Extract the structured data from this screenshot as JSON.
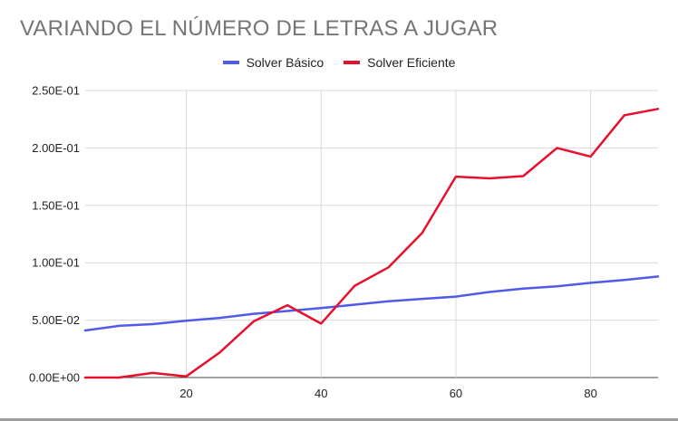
{
  "chart_data": {
    "type": "line",
    "title": "VARIANDO EL NÚMERO DE LETRAS A JUGAR",
    "xlabel": "",
    "ylabel": "",
    "xlim": [
      5,
      90
    ],
    "ylim": [
      0,
      0.25
    ],
    "x_ticks": [
      20,
      40,
      60,
      80
    ],
    "x_tick_labels": [
      "20",
      "40",
      "60",
      "80"
    ],
    "y_ticks": [
      0,
      0.05,
      0.1,
      0.15,
      0.2,
      0.25
    ],
    "y_tick_labels": [
      "0.00E+00",
      "5.00E-02",
      "1.00E-01",
      "1.50E-01",
      "2.00E-01",
      "2.50E-01"
    ],
    "grid": true,
    "legend_position": "top-center",
    "x": [
      5,
      10,
      15,
      20,
      25,
      30,
      35,
      40,
      45,
      50,
      55,
      60,
      65,
      70,
      75,
      80,
      85,
      90
    ],
    "series": [
      {
        "name": "Solver Básico",
        "color": "#4f5bea",
        "values": [
          0.041,
          0.045,
          0.0465,
          0.0495,
          0.052,
          0.0555,
          0.058,
          0.0605,
          0.0635,
          0.0665,
          0.0685,
          0.0705,
          0.0745,
          0.0775,
          0.0795,
          0.0825,
          0.085,
          0.088
        ]
      },
      {
        "name": "Solver Eficiente",
        "color": "#e8112d",
        "values": [
          0.0,
          0.0,
          0.004,
          0.001,
          0.022,
          0.049,
          0.063,
          0.047,
          0.08,
          0.096,
          0.126,
          0.175,
          0.1735,
          0.1755,
          0.2,
          0.1925,
          0.2285,
          0.234
        ]
      }
    ]
  }
}
